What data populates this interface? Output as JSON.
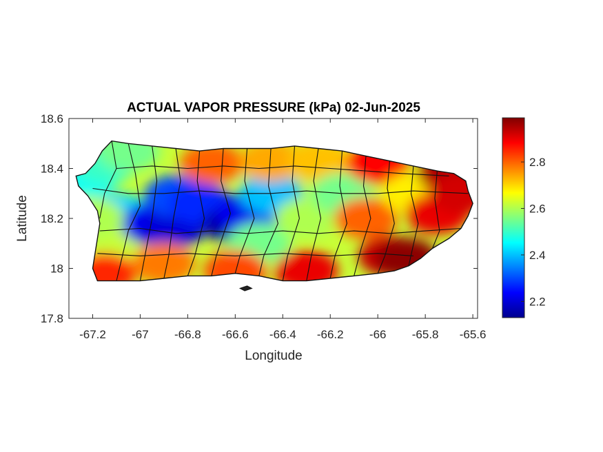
{
  "chart_data": {
    "type": "heatmap",
    "title": "ACTUAL VAPOR PRESSURE (kPa) 02-Jun-2025",
    "xlabel": "Longitude",
    "ylabel": "Latitude",
    "xlim": [
      -67.3,
      -65.58
    ],
    "ylim": [
      17.8,
      18.6
    ],
    "x_ticks": [
      -67.2,
      -67,
      -66.8,
      -66.6,
      -66.4,
      -66.2,
      -66,
      -65.8,
      -65.6
    ],
    "x_tick_labels": [
      "-67.2",
      "-67",
      "-66.8",
      "-66.6",
      "-66.4",
      "-66.2",
      "-66",
      "-65.8",
      "-65.6"
    ],
    "y_ticks": [
      17.8,
      18,
      18.2,
      18.4,
      18.6
    ],
    "y_tick_labels": [
      "17.8",
      "18",
      "18.2",
      "18.4",
      "18.6"
    ],
    "colorbar": {
      "colormap": "jet",
      "range": [
        2.13,
        2.99
      ],
      "ticks": [
        2.2,
        2.4,
        2.6,
        2.8
      ],
      "tick_labels": [
        "2.2",
        "2.4",
        "2.6",
        "2.8"
      ],
      "placement": "right"
    },
    "grid": false,
    "legend": "none",
    "region": "Puerto Rico (municipality boundaries)",
    "field_samples": [
      {
        "lon": -67.22,
        "lat": 18.37,
        "value": 2.46
      },
      {
        "lon": -67.15,
        "lat": 18.42,
        "value": 2.5
      },
      {
        "lon": -67.05,
        "lat": 18.47,
        "value": 2.55
      },
      {
        "lon": -67.1,
        "lat": 18.22,
        "value": 2.42
      },
      {
        "lon": -67.15,
        "lat": 18.08,
        "value": 2.62
      },
      {
        "lon": -67.15,
        "lat": 17.98,
        "value": 2.85
      },
      {
        "lon": -66.95,
        "lat": 18.18,
        "value": 2.22
      },
      {
        "lon": -66.85,
        "lat": 18.17,
        "value": 2.2
      },
      {
        "lon": -66.85,
        "lat": 18.29,
        "value": 2.3
      },
      {
        "lon": -66.75,
        "lat": 18.26,
        "value": 2.27
      },
      {
        "lon": -66.7,
        "lat": 18.42,
        "value": 2.8
      },
      {
        "lon": -66.6,
        "lat": 18.18,
        "value": 2.15
      },
      {
        "lon": -66.55,
        "lat": 18.22,
        "value": 2.22
      },
      {
        "lon": -66.45,
        "lat": 18.3,
        "value": 2.4
      },
      {
        "lon": -66.5,
        "lat": 18.1,
        "value": 2.55
      },
      {
        "lon": -66.45,
        "lat": 18.43,
        "value": 2.74
      },
      {
        "lon": -66.3,
        "lat": 18.2,
        "value": 2.6
      },
      {
        "lon": -66.25,
        "lat": 18.43,
        "value": 2.72
      },
      {
        "lon": -66.3,
        "lat": 17.99,
        "value": 2.9
      },
      {
        "lon": -66.15,
        "lat": 18.3,
        "value": 2.55
      },
      {
        "lon": -66.0,
        "lat": 18.42,
        "value": 2.88
      },
      {
        "lon": -66.05,
        "lat": 18.2,
        "value": 2.8
      },
      {
        "lon": -65.95,
        "lat": 18.05,
        "value": 2.93
      },
      {
        "lon": -65.88,
        "lat": 18.04,
        "value": 2.98
      },
      {
        "lon": -65.85,
        "lat": 18.3,
        "value": 2.68
      },
      {
        "lon": -65.75,
        "lat": 18.22,
        "value": 2.9
      },
      {
        "lon": -65.7,
        "lat": 18.38,
        "value": 2.95
      },
      {
        "lon": -65.65,
        "lat": 18.3,
        "value": 2.92
      },
      {
        "lon": -66.9,
        "lat": 18.02,
        "value": 2.78
      },
      {
        "lon": -66.6,
        "lat": 17.99,
        "value": 2.82
      },
      {
        "lon": -67.2,
        "lat": 18.2,
        "value": 2.6
      }
    ]
  }
}
